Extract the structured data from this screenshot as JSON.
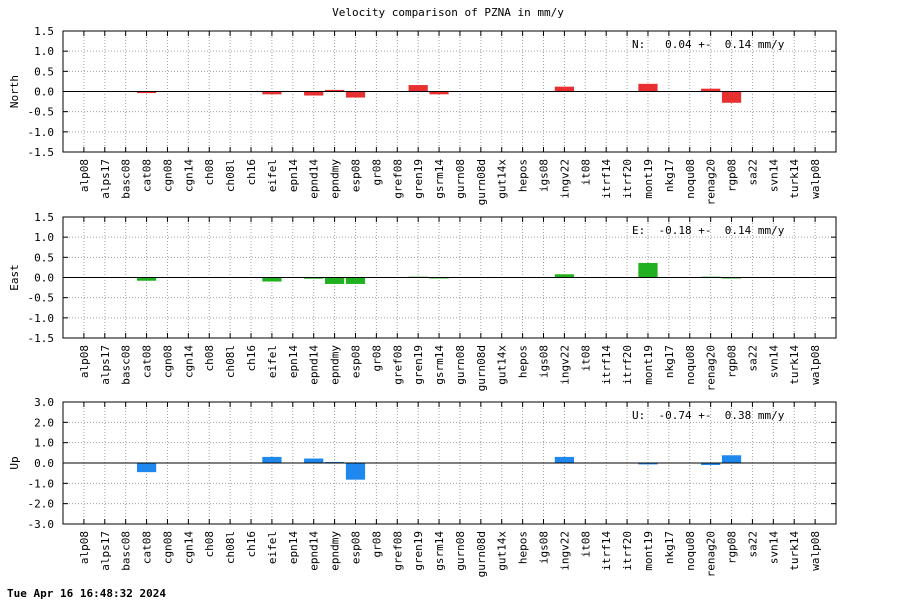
{
  "figure": {
    "title": "Velocity comparison of PZNA in mm/y",
    "timestamp": "Tue Apr 16 16:48:32 2024"
  },
  "chart_data": [
    {
      "type": "bar",
      "component": "North",
      "ylabel": "North",
      "color": "#e83030",
      "ylim": [
        -1.5,
        1.5
      ],
      "yticks": [
        "1.5",
        "1.0",
        "0.5",
        "0.0",
        "-0.5",
        "-1.0",
        "-1.5"
      ],
      "grid": true,
      "annotation": "N:   0.04 +-  0.14 mm/y",
      "categories": [
        "alp08",
        "alps17",
        "basc08",
        "cat08",
        "cgn08",
        "cgn14",
        "ch08",
        "ch08l",
        "ch16",
        "eifel",
        "epn14",
        "epnd14",
        "epndmy",
        "esp08",
        "gr08",
        "gref08",
        "gren19",
        "gsrm14",
        "gurn08",
        "gurn08d",
        "gut14x",
        "hepos",
        "igs08",
        "ingv22",
        "it08",
        "itrf14",
        "itrf20",
        "mont19",
        "nkg17",
        "noqu08",
        "renag20",
        "rgp08",
        "sa22",
        "svn14",
        "turk14",
        "walp08"
      ],
      "values": [
        0,
        0,
        0,
        -0.04,
        0,
        0,
        0,
        0,
        0,
        -0.07,
        0,
        -0.1,
        0.04,
        -0.15,
        0,
        0,
        0.16,
        -0.07,
        0,
        0,
        0,
        0,
        0,
        0.12,
        0,
        0,
        0,
        0.19,
        0,
        0,
        0.07,
        -0.28,
        0,
        0,
        0,
        0
      ]
    },
    {
      "type": "bar",
      "component": "East",
      "ylabel": "East",
      "color": "#20b020",
      "ylim": [
        -1.5,
        1.5
      ],
      "yticks": [
        "1.5",
        "1.0",
        "0.5",
        "0.0",
        "-0.5",
        "-1.0",
        "-1.5"
      ],
      "grid": true,
      "annotation": "E:  -0.18 +-  0.14 mm/y",
      "categories": [
        "alp08",
        "alps17",
        "basc08",
        "cat08",
        "cgn08",
        "cgn14",
        "ch08",
        "ch08l",
        "ch16",
        "eifel",
        "epn14",
        "epnd14",
        "epndmy",
        "esp08",
        "gr08",
        "gref08",
        "gren19",
        "gsrm14",
        "gurn08",
        "gurn08d",
        "gut14x",
        "hepos",
        "igs08",
        "ingv22",
        "it08",
        "itrf14",
        "itrf20",
        "mont19",
        "nkg17",
        "noqu08",
        "renag20",
        "rgp08",
        "sa22",
        "svn14",
        "turk14",
        "walp08"
      ],
      "values": [
        0,
        0,
        0,
        -0.08,
        0,
        0,
        0,
        0,
        0,
        -0.1,
        0,
        -0.03,
        -0.16,
        -0.16,
        0,
        0,
        0.02,
        -0.02,
        0,
        0,
        0,
        0,
        0,
        0.08,
        0,
        0,
        0,
        0.36,
        0,
        0,
        0.02,
        -0.02,
        0,
        0,
        0,
        0
      ]
    },
    {
      "type": "bar",
      "component": "Up",
      "ylabel": "Up",
      "color": "#1e88ee",
      "ylim": [
        -3.0,
        3.0
      ],
      "yticks": [
        "3.0",
        "2.0",
        "1.0",
        "0.0",
        "-1.0",
        "-2.0",
        "-3.0"
      ],
      "grid": true,
      "annotation": "U:  -0.74 +-  0.38 mm/y",
      "categories": [
        "alp08",
        "alps17",
        "basc08",
        "cat08",
        "cgn08",
        "cgn14",
        "ch08",
        "ch08l",
        "ch16",
        "eifel",
        "epn14",
        "epnd14",
        "epndmy",
        "esp08",
        "gr08",
        "gref08",
        "gren19",
        "gsrm14",
        "gurn08",
        "gurn08d",
        "gut14x",
        "hepos",
        "igs08",
        "ingv22",
        "it08",
        "itrf14",
        "itrf20",
        "mont19",
        "nkg17",
        "noqu08",
        "renag20",
        "rgp08",
        "sa22",
        "svn14",
        "turk14",
        "walp08"
      ],
      "values": [
        0,
        0,
        0,
        -0.45,
        0,
        0,
        0,
        0,
        0,
        0.3,
        0,
        0.22,
        0.05,
        -0.82,
        0,
        0,
        0,
        0,
        0,
        0,
        0,
        0,
        0,
        0.3,
        0,
        0,
        0,
        -0.07,
        0,
        0,
        -0.1,
        0.38,
        0,
        0,
        0,
        0
      ]
    }
  ]
}
